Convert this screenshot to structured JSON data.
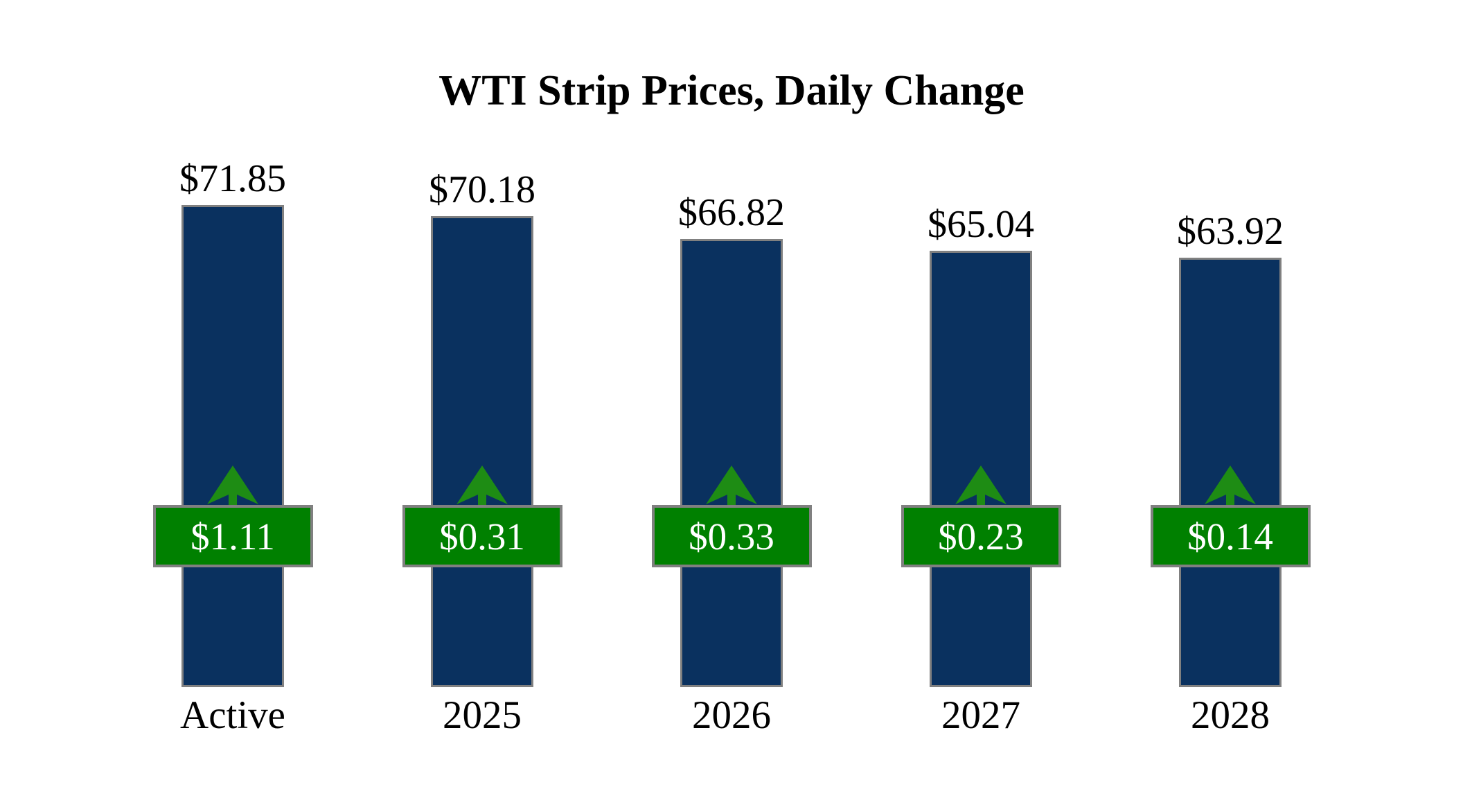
{
  "page": {
    "background": "#FFFFFF"
  },
  "title": "WTI Strip Prices, Daily Change",
  "colors": {
    "bar": "#0A315F",
    "bar_border": "#808080",
    "badge": "#008000",
    "badge_border": "#808080",
    "badge_text": "#FFFFFF",
    "arrow": "#1E8C14",
    "text": "#000000"
  },
  "chart_data": {
    "type": "bar",
    "title": "WTI Strip Prices, Daily Change",
    "categories": [
      "Active",
      "2025",
      "2026",
      "2027",
      "2028"
    ],
    "series": [
      {
        "name": "WTI Strip Price",
        "values": [
          71.85,
          70.18,
          66.82,
          65.04,
          63.92
        ],
        "labels": [
          "$71.85",
          "$70.18",
          "$66.82",
          "$65.04",
          "$63.92"
        ]
      },
      {
        "name": "Daily Change",
        "values": [
          1.11,
          0.31,
          0.33,
          0.23,
          0.14
        ],
        "labels": [
          "$1.11",
          "$0.31",
          "$0.33",
          "$0.23",
          "$0.14"
        ],
        "direction": "up"
      }
    ],
    "ylim": [
      0,
      75
    ],
    "xlabel": "",
    "ylabel": "",
    "grid": false,
    "legend": false,
    "bar_baseline_value": 0
  }
}
